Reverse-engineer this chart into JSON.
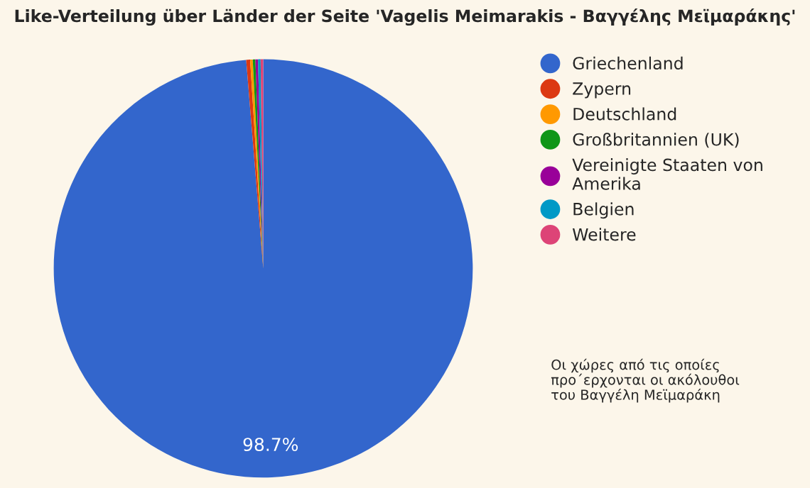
{
  "chart_data": {
    "type": "pie",
    "title": "Like-Verteilung über Länder der Seite 'Vagelis Meimarakis - Βαγγέλης Μεϊμαράκης'",
    "categories": [
      "Griechenland",
      "Zypern",
      "Deutschland",
      "Großbritannien (UK)",
      "Vereinigte Staaten von Amerika",
      "Belgien",
      "Weitere"
    ],
    "values": [
      98.7,
      0.3,
      0.2,
      0.2,
      0.2,
      0.2,
      0.2
    ],
    "colors": [
      "#3366cc",
      "#dc3912",
      "#ff9900",
      "#109618",
      "#990099",
      "#0099c6",
      "#dd4477"
    ],
    "value_labels": [
      "98.7%",
      null,
      null,
      null,
      null,
      null,
      null
    ],
    "legend": "right",
    "annotations": [
      "Οι χώρες από τις οποίες\nπρο΄ερχονται οι ακόλουθοι\nτου Βαγγέλη Μεϊμαράκη"
    ]
  }
}
